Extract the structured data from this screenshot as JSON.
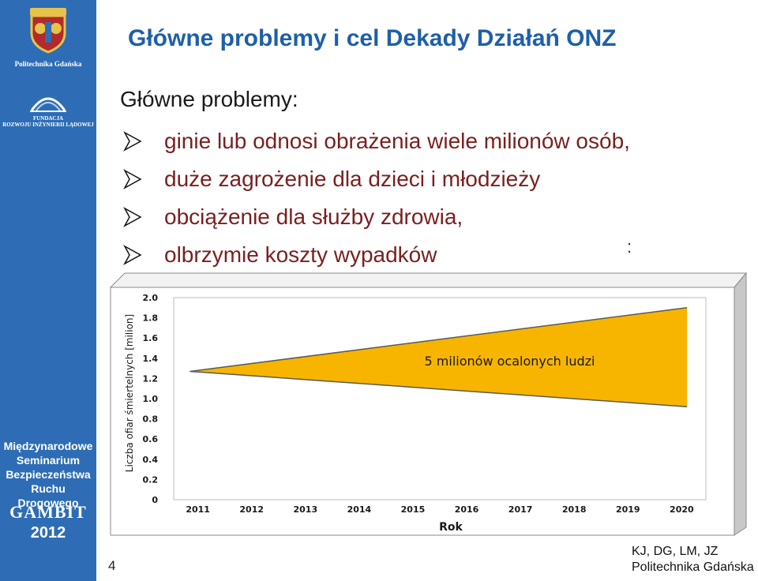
{
  "slide": {
    "title": "Główne problemy i cel  Dekady Działań ONZ",
    "subtitle": "Główne problemy:",
    "bullets": [
      "ginie lub odnosi obrażenia wiele milionów osób,",
      "duże zagrożenie dla dzieci i młodzieży",
      "obciążenie dla służby zdrowia,",
      "olbrzymie koszty wypadków"
    ],
    "colon": ":",
    "page_number": "4",
    "credit_line1": "KJ, DG, LM, JZ",
    "credit_line2": "Politechnika Gdańska"
  },
  "sidebar": {
    "university": "Politechnika Gdańska",
    "foundation_line1": "FUNDACJA",
    "foundation_line2": "ROZWOJU INŻYNIERII LĄDOWEJ",
    "seminar_lines": [
      "Międzynarodowe",
      "Seminarium",
      "Bezpieczeństwa",
      "Ruchu Drogowego"
    ],
    "gambit": "GAMBIT",
    "year": "2012"
  },
  "colors": {
    "sidebar_blue": "#2e6db5",
    "title_blue": "#1f5fa8",
    "bullet_red": "#7a1f1f",
    "area_fill": "#f7b500"
  },
  "chart_data": {
    "type": "area",
    "title": "",
    "xlabel": "Rok",
    "ylabel": "Liczba ofiar śmiertelnych [milion]",
    "categories": [
      "2011",
      "2012",
      "2013",
      "2014",
      "2015",
      "2016",
      "2017",
      "2018",
      "2019",
      "2020"
    ],
    "x_range": [
      2011,
      2020
    ],
    "yticks": [
      "0",
      "0.2",
      "0.4",
      "0.6",
      "0.8",
      "1.0",
      "1.2",
      "1.4",
      "1.6",
      "1.8",
      "2.0"
    ],
    "ylim": [
      0,
      2.0
    ],
    "series": [
      {
        "x": [
          2010.85,
          2020.1
        ],
        "values": [
          1.27,
          1.9
        ]
      },
      {
        "x": [
          2010.85,
          2020.1
        ],
        "values": [
          1.27,
          0.92
        ]
      }
    ],
    "annotation": "5 milionów ocalonych ludzi",
    "grid": false,
    "legend": "none"
  }
}
